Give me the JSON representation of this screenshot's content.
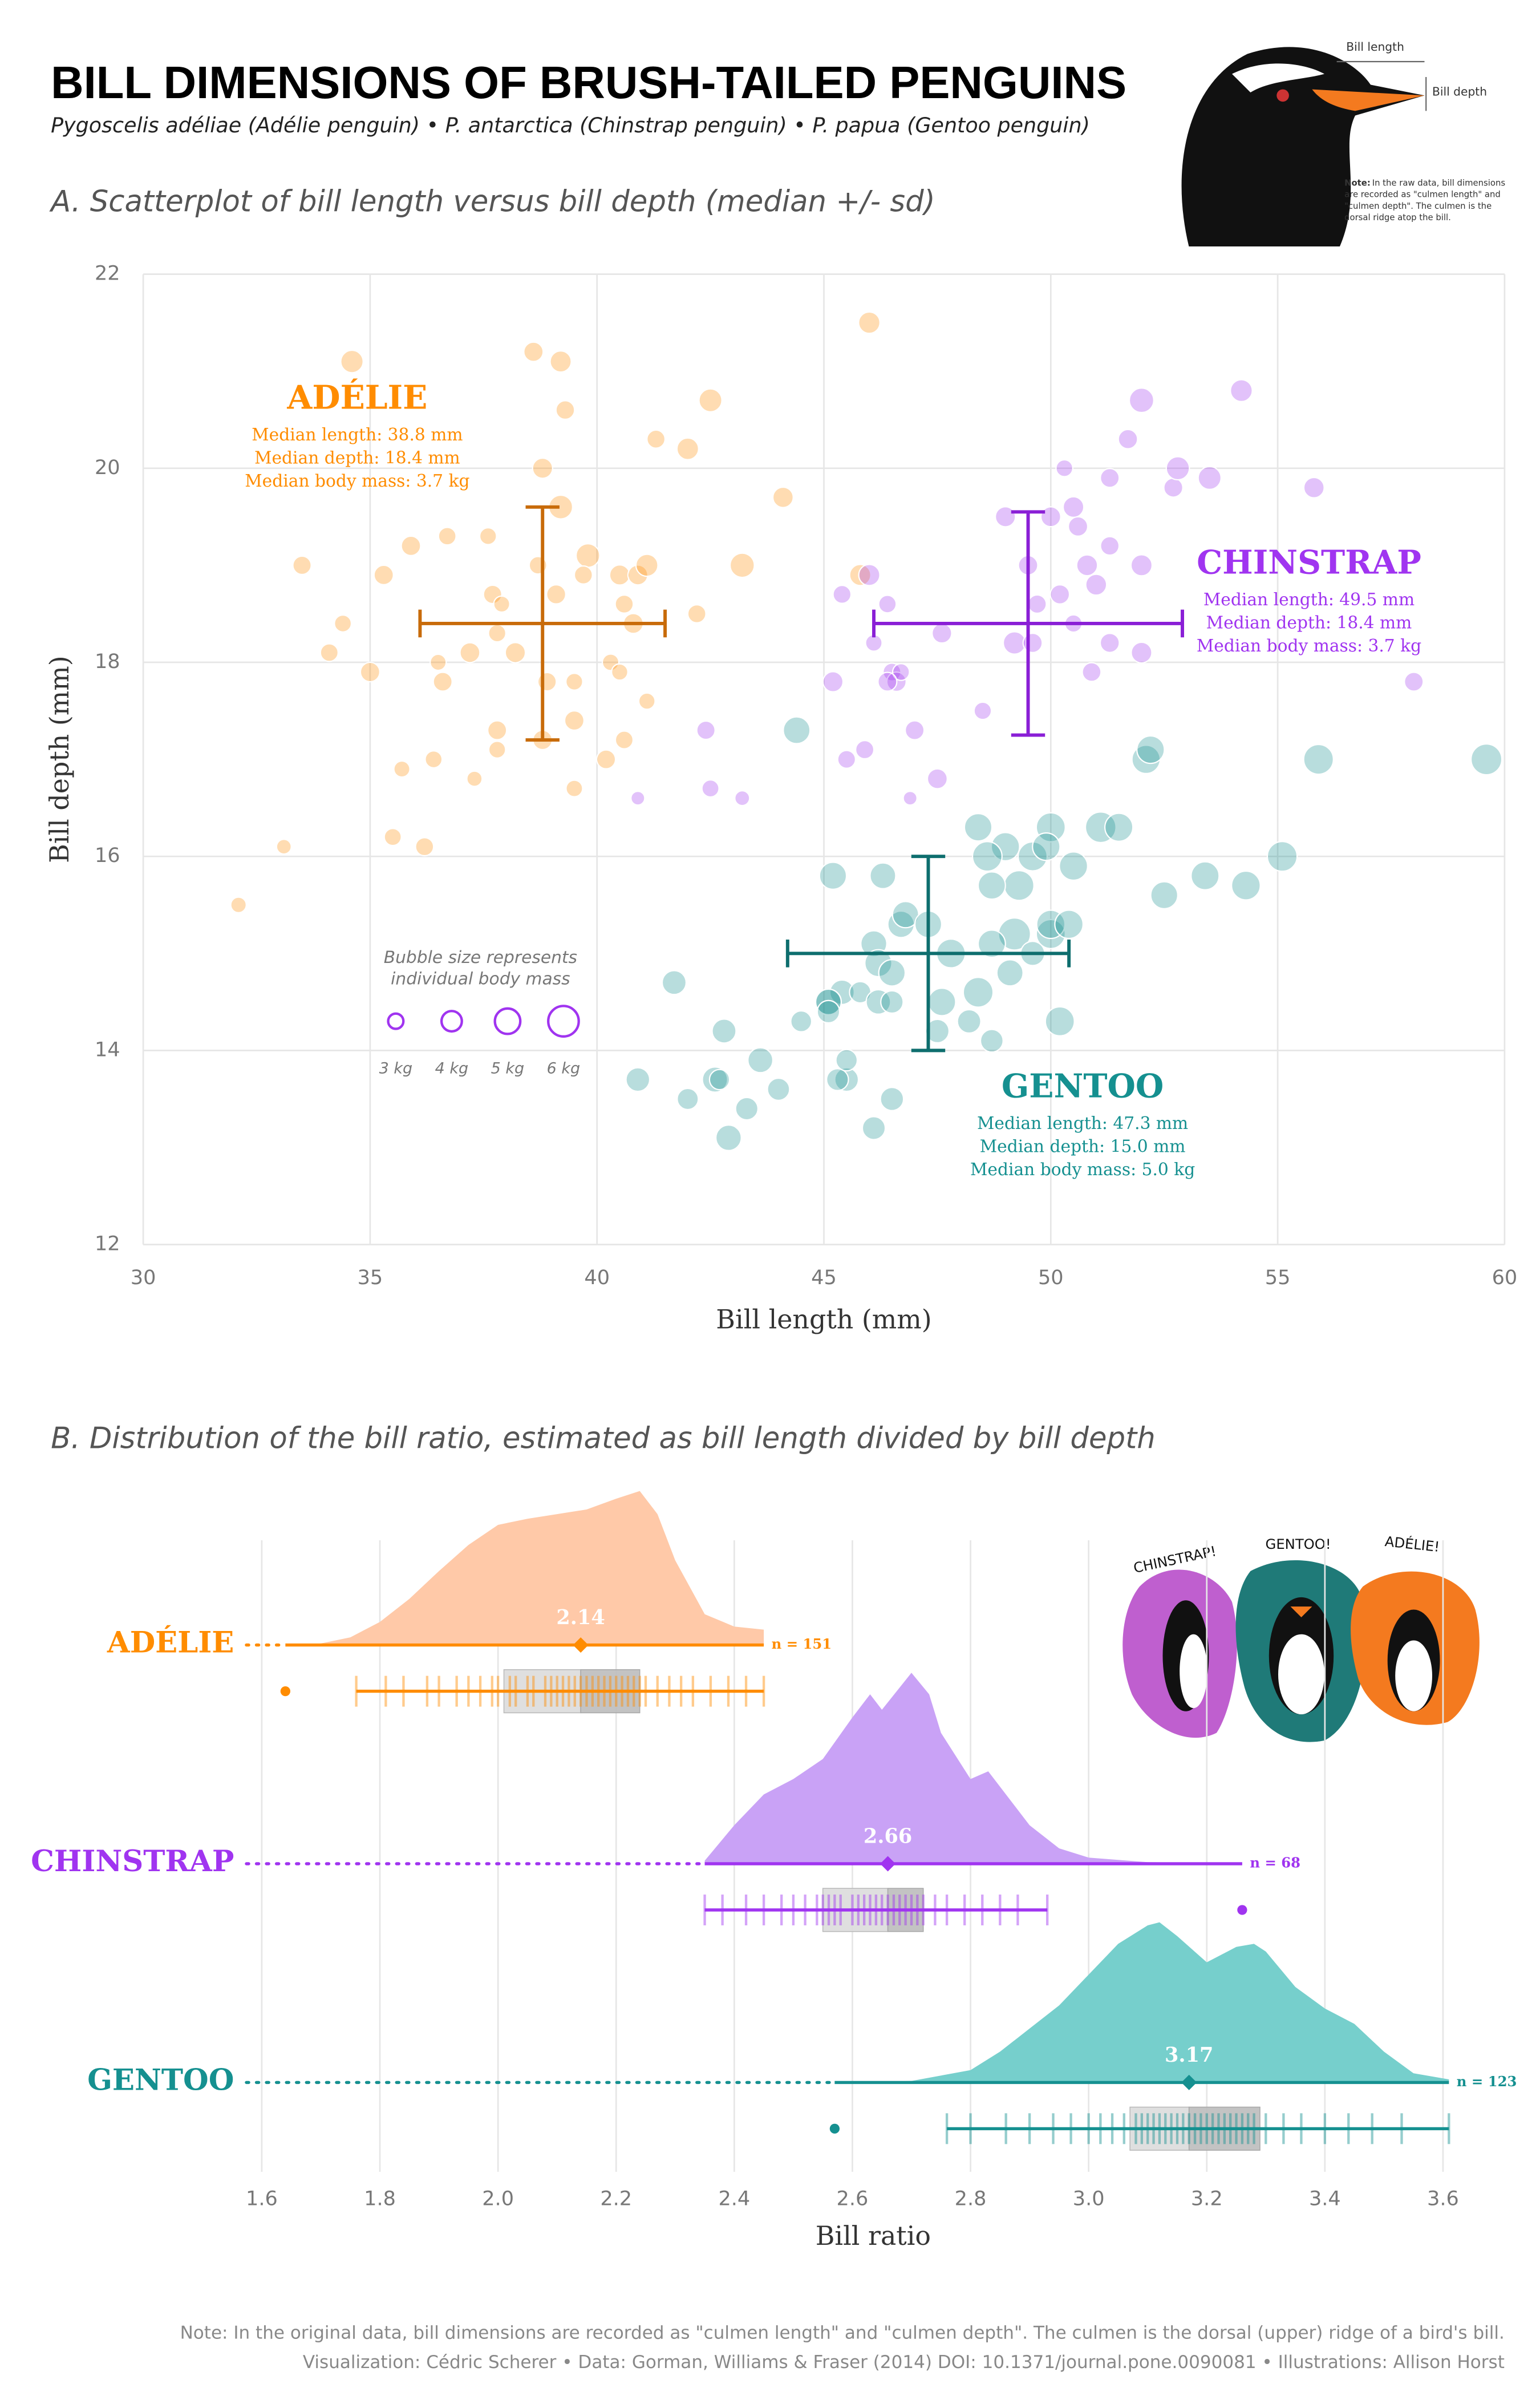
{
  "header": {
    "title": "BILL DIMENSIONS OF BRUSH-TAILED PENGUINS",
    "subtitle": "Pygoscelis adéliae (Adélie penguin)  •  P. antarctica (Chinstrap penguin)  •  P. papua (Gentoo penguin)"
  },
  "illustration": {
    "bill_length": "Bill length",
    "bill_depth": "Bill depth",
    "note_lead": "Note:",
    "note_lines": [
      "In the raw data, bill dimensions",
      "are recorded as \"culmen length\" and",
      "\"culmen depth\". The culmen is the",
      "dorsal ridge atop the bill."
    ],
    "cartoon_labels": [
      "CHINSTRAP!",
      "GENTOO!",
      "ADÉLIE!"
    ]
  },
  "chart_data": [
    {
      "type": "scatter",
      "title": "A. Scatterplot of bill length versus bill depth (median +/- sd)",
      "x_label": "Bill length (mm)",
      "y_label": "Bill depth (mm)",
      "xlim": [
        30,
        60
      ],
      "ylim": [
        12,
        22
      ],
      "xticks": [
        30,
        35,
        40,
        45,
        50,
        55,
        60
      ],
      "yticks": [
        12,
        14,
        16,
        18,
        20,
        22
      ],
      "grid": true,
      "size_legend": {
        "title": [
          "Bubble size represents",
          "individual body mass"
        ],
        "color": "#a034f0",
        "sizes": [
          {
            "value": 3,
            "label": "3 kg"
          },
          {
            "value": 4,
            "label": "4 kg"
          },
          {
            "value": 5,
            "label": "5 kg"
          },
          {
            "value": 6,
            "label": "6 kg"
          }
        ]
      },
      "series": [
        {
          "name": "ADÉLIE",
          "color": "#ff8c00",
          "dark_color": "#c86b0a",
          "median_x": 38.8,
          "sd_x": 2.7,
          "median_y": 18.4,
          "sd_y": 1.2,
          "annotation": [
            "Median length: 38.8 mm",
            "Median depth: 18.4 mm",
            "Median body mass: 3.7 kg"
          ],
          "x": [
            39.1,
            39.5,
            40.3,
            36.7,
            39.3,
            38.9,
            39.2,
            34.1,
            42.0,
            37.8,
            37.8,
            41.1,
            38.6,
            34.6,
            36.6,
            38.7,
            42.5,
            34.4,
            46.0,
            37.8,
            37.7,
            35.9,
            38.2,
            38.8,
            35.3,
            40.6,
            40.5,
            37.9,
            40.5,
            39.5,
            37.2,
            39.5,
            40.9,
            36.4,
            39.2,
            38.8,
            42.2,
            37.6,
            39.8,
            36.5,
            32.1,
            33.1,
            35.7,
            41.3,
            45.8,
            33.5,
            40.8,
            36.2,
            44.1,
            35.0,
            41.1,
            40.2,
            39.7,
            40.6,
            35.5,
            43.2,
            37.3
          ],
          "y": [
            18.7,
            17.4,
            18.0,
            19.3,
            20.6,
            17.8,
            19.6,
            18.1,
            20.2,
            17.1,
            17.3,
            17.6,
            21.2,
            21.1,
            17.8,
            19.0,
            20.7,
            18.4,
            21.5,
            18.3,
            18.7,
            19.2,
            18.1,
            17.2,
            18.9,
            18.6,
            17.9,
            18.6,
            18.9,
            16.7,
            18.1,
            17.8,
            18.9,
            17.0,
            21.1,
            20.0,
            18.5,
            19.3,
            19.1,
            18.0,
            15.5,
            16.1,
            16.9,
            20.3,
            18.9,
            19.0,
            18.4,
            16.1,
            19.7,
            17.9,
            19.0,
            17.0,
            18.9,
            17.2,
            16.2,
            19.0,
            16.8
          ],
          "mass": [
            3.75,
            3.8,
            3.25,
            3.45,
            3.65,
            3.625,
            4.675,
            3.475,
            4.25,
            3.3,
            3.7,
            3.2,
            3.8,
            4.4,
            3.7,
            3.45,
            4.5,
            3.325,
            4.2,
            3.4,
            3.6,
            3.8,
            3.95,
            3.8,
            3.8,
            3.55,
            3.2,
            3.15,
            3.95,
            3.25,
            3.9,
            3.3,
            3.9,
            3.325,
            4.15,
            3.95,
            3.55,
            3.3,
            4.65,
            3.15,
            3.05,
            2.9,
            3.15,
            3.55,
            4.15,
            3.6,
            3.9,
            3.55,
            4.0,
            3.8,
            4.325,
            3.7,
            3.55,
            3.475,
            3.35,
            4.775,
            3.0
          ]
        },
        {
          "name": "CHINSTRAP",
          "color": "#a034f0",
          "dark_color": "#8a1fd6",
          "median_x": 49.5,
          "sd_x": 3.4,
          "median_y": 18.4,
          "sd_y": 1.15,
          "annotation": [
            "Median length: 49.5 mm",
            "Median depth: 18.4 mm",
            "Median body mass: 3.7 kg"
          ],
          "x": [
            46.5,
            50.0,
            51.3,
            45.4,
            52.7,
            45.2,
            46.1,
            51.3,
            46.0,
            51.3,
            46.6,
            51.7,
            47.0,
            52.0,
            45.9,
            50.5,
            50.3,
            58.0,
            46.4,
            49.2,
            42.4,
            48.5,
            43.2,
            50.6,
            46.7,
            52.0,
            50.5,
            49.5,
            46.4,
            52.8,
            40.9,
            54.2,
            42.5,
            51.0,
            49.7,
            47.5,
            47.6,
            52.0,
            46.9,
            53.5,
            49.0,
            50.9,
            45.5,
            55.8,
            49.6,
            50.8,
            50.2
          ],
          "y": [
            17.9,
            19.5,
            19.2,
            18.7,
            19.8,
            17.8,
            18.2,
            18.2,
            18.9,
            19.9,
            17.8,
            20.3,
            17.3,
            18.1,
            17.1,
            19.6,
            20.0,
            17.8,
            18.6,
            18.2,
            17.3,
            17.5,
            16.6,
            19.4,
            17.9,
            19.0,
            18.4,
            19.0,
            17.8,
            20.0,
            16.6,
            20.8,
            16.7,
            18.8,
            18.6,
            16.8,
            18.3,
            20.7,
            16.6,
            19.9,
            19.5,
            17.9,
            17.0,
            19.8,
            18.2,
            19.0,
            18.7
          ],
          "mass": [
            3.5,
            3.9,
            3.65,
            3.525,
            3.725,
            3.95,
            3.25,
            3.75,
            4.15,
            3.7,
            3.8,
            3.775,
            3.7,
            4.05,
            3.575,
            4.05,
            3.3,
            3.7,
            3.45,
            4.4,
            3.6,
            3.4,
            2.9,
            3.8,
            3.3,
            4.15,
            3.4,
            3.8,
            3.7,
            4.55,
            2.7,
            4.3,
            3.35,
            4.1,
            3.6,
            3.9,
            3.85,
            4.8,
            2.7,
            4.5,
            3.95,
            3.675,
            3.5,
            4.0,
            3.775,
            4.1,
            3.775
          ]
        },
        {
          "name": "GENTOO",
          "color": "#159090",
          "dark_color": "#0e6e6e",
          "median_x": 47.3,
          "sd_x": 3.1,
          "median_y": 15.0,
          "sd_y": 1.0,
          "annotation": [
            "Median length: 47.3 mm",
            "Median depth: 15.0 mm",
            "Median body mass: 5.0 kg"
          ],
          "x": [
            46.1,
            50.0,
            48.7,
            50.0,
            47.6,
            46.5,
            45.4,
            46.7,
            43.3,
            46.8,
            40.9,
            49.0,
            45.5,
            48.4,
            45.8,
            49.3,
            42.0,
            49.2,
            46.2,
            48.7,
            50.2,
            45.1,
            46.5,
            46.3,
            42.9,
            46.1,
            44.5,
            47.8,
            48.2,
            50.0,
            47.3,
            42.8,
            45.1,
            59.6,
            49.1,
            48.4,
            42.6,
            44.4,
            44.0,
            48.7,
            42.7,
            49.6,
            45.3,
            49.6,
            50.5,
            43.6,
            45.5,
            50.4,
            46.2,
            45.1,
            46.5,
            49.9,
            55.9,
            51.1,
            53.4,
            54.3,
            52.5,
            55.1,
            52.1,
            52.2,
            51.5,
            48.6,
            47.5,
            41.7,
            45.2
          ],
          "y": [
            13.2,
            16.3,
            14.1,
            15.2,
            14.5,
            13.5,
            14.6,
            15.3,
            13.4,
            15.4,
            13.7,
            16.1,
            13.7,
            14.6,
            14.6,
            15.7,
            13.5,
            15.2,
            14.5,
            15.1,
            14.3,
            14.5,
            14.5,
            15.8,
            13.1,
            15.1,
            14.3,
            15.0,
            14.3,
            15.3,
            15.3,
            14.2,
            14.5,
            17.0,
            14.8,
            16.3,
            13.7,
            17.3,
            13.6,
            15.7,
            13.7,
            16.0,
            13.7,
            15.0,
            15.9,
            13.9,
            13.9,
            15.3,
            14.9,
            14.4,
            14.8,
            16.1,
            17.0,
            16.3,
            15.8,
            15.7,
            15.6,
            16.0,
            17.0,
            17.1,
            16.3,
            16.0,
            14.2,
            14.7,
            15.8
          ],
          "mass": [
            4.5,
            5.7,
            4.45,
            5.7,
            5.4,
            4.55,
            4.8,
            5.2,
            4.4,
            5.15,
            4.65,
            5.55,
            4.65,
            5.85,
            4.2,
            5.85,
            4.15,
            6.3,
            4.8,
            5.35,
            5.7,
            5.0,
            4.4,
            5.05,
            5.0,
            5.1,
            4.1,
            5.65,
            4.6,
            5.55,
            5.25,
            4.7,
            5.05,
            6.05,
            5.15,
            5.4,
            4.95,
            5.25,
            4.35,
            5.35,
            3.95,
            5.7,
            4.3,
            4.75,
            5.55,
            4.9,
            4.2,
            5.55,
            5.3,
            4.4,
            5.2,
            5.4,
            5.85,
            6.0,
            5.5,
            5.65,
            5.3,
            5.85,
            5.55,
            5.4,
            5.5,
            5.8,
            4.6,
            4.7,
            5.3
          ]
        }
      ]
    },
    {
      "type": "raincloud",
      "title": "B. Distribution of the bill ratio, estimated as bill length divided by bill depth",
      "x_label": "Bill ratio",
      "xlim": [
        1.55,
        3.65
      ],
      "xticks": [
        1.6,
        1.8,
        {
          "value": 2,
          "label": "2.0"
        },
        2.2,
        2.4,
        2.6,
        2.8,
        {
          "value": 3,
          "label": "3.0"
        },
        3.2,
        3.4,
        3.6
      ],
      "grid": true,
      "series": [
        {
          "name": "ADÉLIE",
          "color": "#ff8c00",
          "cloud_color": "#ffc9a8",
          "median": 2.14,
          "n_label": "n = 151",
          "q1": 2.01,
          "q3": 2.24,
          "whisker": [
            1.76,
            2.45
          ],
          "outliers": [
            1.64
          ],
          "density_x": [
            1.64,
            1.7,
            1.75,
            1.8,
            1.85,
            1.9,
            1.95,
            2.0,
            2.05,
            2.1,
            2.15,
            2.2,
            2.24,
            2.27,
            2.3,
            2.35,
            2.4,
            2.45
          ],
          "density_y": [
            0.0,
            0.01,
            0.05,
            0.15,
            0.3,
            0.48,
            0.65,
            0.78,
            0.82,
            0.85,
            0.88,
            0.95,
            1.0,
            0.85,
            0.55,
            0.2,
            0.12,
            0.1
          ],
          "values": [
            1.76,
            1.81,
            1.84,
            1.88,
            1.9,
            1.93,
            1.95,
            1.97,
            1.99,
            2.0,
            2.02,
            2.03,
            2.05,
            2.06,
            2.08,
            2.09,
            2.1,
            2.11,
            2.12,
            2.13,
            2.14,
            2.15,
            2.16,
            2.17,
            2.18,
            2.19,
            2.2,
            2.21,
            2.22,
            2.23,
            2.24,
            2.25,
            2.27,
            2.29,
            2.31,
            2.33,
            2.36,
            2.39,
            2.42,
            2.45
          ]
        },
        {
          "name": "CHINSTRAP",
          "color": "#a034f0",
          "cloud_color": "#c9a2f6",
          "median": 2.66,
          "n_label": "n = 68",
          "q1": 2.55,
          "q3": 2.72,
          "whisker": [
            2.35,
            2.93
          ],
          "outliers": [
            3.26
          ],
          "density_x": [
            2.35,
            2.4,
            2.45,
            2.5,
            2.55,
            2.6,
            2.63,
            2.65,
            2.7,
            2.73,
            2.75,
            2.8,
            2.83,
            2.85,
            2.9,
            2.95,
            3.0,
            3.1,
            3.2,
            3.26
          ],
          "density_y": [
            0.02,
            0.25,
            0.45,
            0.55,
            0.68,
            0.95,
            1.1,
            1.0,
            1.24,
            1.1,
            0.85,
            0.55,
            0.6,
            0.5,
            0.25,
            0.1,
            0.04,
            0.01,
            0.005,
            0.005
          ],
          "values": [
            2.35,
            2.38,
            2.42,
            2.45,
            2.48,
            2.5,
            2.52,
            2.54,
            2.55,
            2.56,
            2.57,
            2.58,
            2.6,
            2.61,
            2.62,
            2.63,
            2.64,
            2.65,
            2.66,
            2.67,
            2.68,
            2.69,
            2.7,
            2.71,
            2.72,
            2.74,
            2.76,
            2.79,
            2.82,
            2.85,
            2.88,
            2.93
          ]
        },
        {
          "name": "GENTOO",
          "color": "#159090",
          "cloud_color": "#76cfcc",
          "median": 3.17,
          "n_label": "n = 123",
          "q1": 3.07,
          "q3": 3.29,
          "whisker": [
            2.76,
            3.61
          ],
          "outliers": [
            2.57
          ],
          "density_x": [
            2.57,
            2.7,
            2.8,
            2.85,
            2.9,
            2.95,
            3.0,
            3.05,
            3.1,
            3.12,
            3.15,
            3.2,
            3.25,
            3.28,
            3.3,
            3.35,
            3.4,
            3.45,
            3.5,
            3.55,
            3.61
          ],
          "density_y": [
            0.0,
            0.01,
            0.08,
            0.2,
            0.35,
            0.5,
            0.7,
            0.9,
            1.02,
            1.04,
            0.95,
            0.78,
            0.88,
            0.9,
            0.85,
            0.62,
            0.48,
            0.38,
            0.2,
            0.06,
            0.02
          ],
          "values": [
            2.76,
            2.8,
            2.86,
            2.9,
            2.94,
            2.97,
            3.0,
            3.02,
            3.04,
            3.06,
            3.08,
            3.09,
            3.1,
            3.11,
            3.12,
            3.13,
            3.14,
            3.15,
            3.16,
            3.17,
            3.18,
            3.19,
            3.2,
            3.21,
            3.22,
            3.23,
            3.24,
            3.25,
            3.26,
            3.27,
            3.28,
            3.3,
            3.33,
            3.36,
            3.4,
            3.44,
            3.48,
            3.53,
            3.61
          ]
        }
      ]
    }
  ],
  "footer": [
    "Note: In the original data, bill dimensions are recorded as \"culmen length\" and \"culmen depth\". The culmen is the dorsal (upper) ridge of a bird's bill.",
    "Visualization: Cédric Scherer  •  Data: Gorman, Williams & Fraser (2014) DOI: 10.1371/journal.pone.0090081  •  Illustrations: Allison Horst"
  ]
}
